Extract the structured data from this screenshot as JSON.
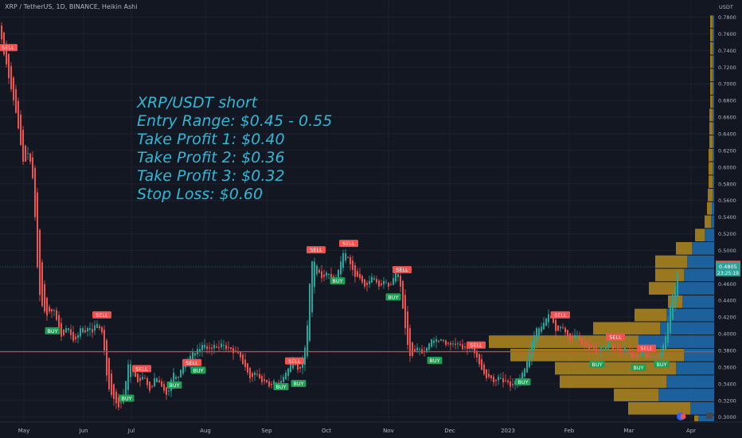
{
  "header": {
    "symbol_line": "XRP / TetherUS, 1D, BINANCE, Heikin Ashi"
  },
  "annotation": {
    "lines": [
      "XRP/USDT short",
      "Entry Range: $0.45 - 0.55",
      "Take Profit 1: $0.40",
      "Take Profit 2: $0.36",
      "Take Profit 3: $0.32",
      "Stop Loss: $0.60"
    ]
  },
  "chart_data": {
    "type": "candlestick",
    "title": "XRP / TetherUS, 1D, BINANCE, Heikin Ashi",
    "currency_label": "USDT",
    "y_ticks": [
      0.3,
      0.32,
      0.34,
      0.36,
      0.38,
      0.4,
      0.42,
      0.44,
      0.46,
      0.48,
      0.5,
      0.52,
      0.54,
      0.56,
      0.58,
      0.6,
      0.62,
      0.64,
      0.66,
      0.68,
      0.7,
      0.72,
      0.74,
      0.76,
      0.78
    ],
    "ylim": [
      0.294,
      0.791
    ],
    "x_labels": [
      "May",
      "Jun",
      "Jul",
      "Aug",
      "Sep",
      "Oct",
      "Nov",
      "Dec",
      "2023",
      "Feb",
      "Mar",
      "Apr"
    ],
    "price_path": [
      [
        0,
        0.77
      ],
      [
        3,
        0.745
      ],
      [
        6,
        0.73
      ],
      [
        9,
        0.72
      ],
      [
        12,
        0.7
      ],
      [
        15,
        0.69
      ],
      [
        18,
        0.675
      ],
      [
        21,
        0.66
      ],
      [
        24,
        0.64
      ],
      [
        27,
        0.62
      ],
      [
        30,
        0.6
      ],
      [
        33,
        0.61
      ],
      [
        36,
        0.62
      ],
      [
        39,
        0.6
      ],
      [
        42,
        0.58
      ],
      [
        45,
        0.52
      ],
      [
        48,
        0.46
      ],
      [
        51,
        0.44
      ],
      [
        54,
        0.43
      ],
      [
        57,
        0.425
      ],
      [
        60,
        0.42
      ],
      [
        63,
        0.43
      ],
      [
        66,
        0.425
      ],
      [
        69,
        0.43
      ],
      [
        72,
        0.41
      ],
      [
        75,
        0.4
      ],
      [
        78,
        0.395
      ],
      [
        81,
        0.4
      ],
      [
        84,
        0.41
      ],
      [
        87,
        0.405
      ],
      [
        90,
        0.395
      ],
      [
        93,
        0.39
      ],
      [
        96,
        0.395
      ],
      [
        99,
        0.4
      ],
      [
        102,
        0.41
      ],
      [
        105,
        0.405
      ],
      [
        108,
        0.4
      ],
      [
        111,
        0.41
      ],
      [
        114,
        0.405
      ],
      [
        117,
        0.4
      ],
      [
        120,
        0.415
      ],
      [
        123,
        0.41
      ],
      [
        126,
        0.405
      ],
      [
        129,
        0.4
      ],
      [
        132,
        0.37
      ],
      [
        135,
        0.34
      ],
      [
        138,
        0.33
      ],
      [
        141,
        0.325
      ],
      [
        144,
        0.32
      ],
      [
        147,
        0.315
      ],
      [
        150,
        0.31
      ],
      [
        153,
        0.32
      ],
      [
        156,
        0.33
      ],
      [
        159,
        0.35
      ],
      [
        162,
        0.37
      ],
      [
        165,
        0.36
      ],
      [
        168,
        0.355
      ],
      [
        171,
        0.345
      ],
      [
        174,
        0.34
      ],
      [
        177,
        0.345
      ],
      [
        180,
        0.35
      ],
      [
        183,
        0.345
      ],
      [
        186,
        0.335
      ],
      [
        189,
        0.33
      ],
      [
        192,
        0.34
      ],
      [
        195,
        0.35
      ],
      [
        198,
        0.345
      ],
      [
        201,
        0.34
      ],
      [
        204,
        0.335
      ],
      [
        207,
        0.33
      ],
      [
        210,
        0.325
      ],
      [
        213,
        0.335
      ],
      [
        216,
        0.35
      ],
      [
        219,
        0.355
      ],
      [
        222,
        0.345
      ],
      [
        225,
        0.35
      ],
      [
        228,
        0.36
      ],
      [
        231,
        0.37
      ],
      [
        234,
        0.365
      ],
      [
        237,
        0.37
      ],
      [
        240,
        0.375
      ],
      [
        243,
        0.38
      ],
      [
        246,
        0.375
      ],
      [
        249,
        0.385
      ],
      [
        252,
        0.38
      ],
      [
        255,
        0.39
      ],
      [
        258,
        0.385
      ],
      [
        261,
        0.38
      ],
      [
        264,
        0.385
      ],
      [
        267,
        0.38
      ],
      [
        270,
        0.39
      ],
      [
        273,
        0.38
      ],
      [
        276,
        0.385
      ],
      [
        279,
        0.39
      ],
      [
        282,
        0.385
      ],
      [
        285,
        0.38
      ],
      [
        288,
        0.385
      ],
      [
        291,
        0.38
      ],
      [
        294,
        0.375
      ],
      [
        297,
        0.38
      ],
      [
        300,
        0.375
      ],
      [
        303,
        0.37
      ],
      [
        306,
        0.36
      ],
      [
        309,
        0.36
      ],
      [
        312,
        0.35
      ],
      [
        315,
        0.345
      ],
      [
        318,
        0.35
      ],
      [
        321,
        0.355
      ],
      [
        324,
        0.35
      ],
      [
        327,
        0.345
      ],
      [
        330,
        0.34
      ],
      [
        333,
        0.345
      ],
      [
        336,
        0.34
      ],
      [
        339,
        0.335
      ],
      [
        342,
        0.34
      ],
      [
        345,
        0.345
      ],
      [
        348,
        0.34
      ],
      [
        351,
        0.34
      ],
      [
        354,
        0.345
      ],
      [
        357,
        0.35
      ],
      [
        360,
        0.355
      ],
      [
        363,
        0.36
      ],
      [
        366,
        0.365
      ],
      [
        369,
        0.37
      ],
      [
        372,
        0.36
      ],
      [
        375,
        0.355
      ],
      [
        378,
        0.36
      ],
      [
        381,
        0.37
      ],
      [
        384,
        0.39
      ],
      [
        387,
        0.42
      ],
      [
        390,
        0.48
      ],
      [
        393,
        0.49
      ],
      [
        396,
        0.485
      ],
      [
        399,
        0.48
      ],
      [
        402,
        0.47
      ],
      [
        405,
        0.465
      ],
      [
        408,
        0.47
      ],
      [
        411,
        0.475
      ],
      [
        414,
        0.47
      ],
      [
        417,
        0.465
      ],
      [
        420,
        0.46
      ],
      [
        423,
        0.47
      ],
      [
        426,
        0.48
      ],
      [
        429,
        0.49
      ],
      [
        432,
        0.5
      ],
      [
        435,
        0.495
      ],
      [
        438,
        0.49
      ],
      [
        441,
        0.48
      ],
      [
        444,
        0.475
      ],
      [
        447,
        0.465
      ],
      [
        450,
        0.47
      ],
      [
        453,
        0.465
      ],
      [
        456,
        0.46
      ],
      [
        459,
        0.455
      ],
      [
        462,
        0.46
      ],
      [
        465,
        0.465
      ],
      [
        468,
        0.47
      ],
      [
        471,
        0.465
      ],
      [
        474,
        0.46
      ],
      [
        477,
        0.455
      ],
      [
        480,
        0.46
      ],
      [
        483,
        0.465
      ],
      [
        486,
        0.46
      ],
      [
        489,
        0.455
      ],
      [
        492,
        0.46
      ],
      [
        495,
        0.47
      ],
      [
        498,
        0.475
      ],
      [
        501,
        0.47
      ],
      [
        504,
        0.45
      ],
      [
        507,
        0.42
      ],
      [
        510,
        0.4
      ],
      [
        513,
        0.38
      ],
      [
        516,
        0.37
      ],
      [
        519,
        0.375
      ],
      [
        522,
        0.38
      ],
      [
        525,
        0.385
      ],
      [
        528,
        0.38
      ],
      [
        531,
        0.375
      ],
      [
        534,
        0.38
      ],
      [
        537,
        0.385
      ],
      [
        540,
        0.39
      ],
      [
        543,
        0.395
      ],
      [
        546,
        0.39
      ],
      [
        549,
        0.395
      ],
      [
        552,
        0.39
      ],
      [
        555,
        0.395
      ],
      [
        558,
        0.39
      ],
      [
        561,
        0.385
      ],
      [
        564,
        0.39
      ],
      [
        567,
        0.385
      ],
      [
        570,
        0.39
      ],
      [
        573,
        0.385
      ],
      [
        576,
        0.39
      ],
      [
        579,
        0.385
      ],
      [
        582,
        0.38
      ],
      [
        585,
        0.385
      ],
      [
        588,
        0.38
      ],
      [
        591,
        0.385
      ],
      [
        594,
        0.38
      ],
      [
        597,
        0.375
      ],
      [
        600,
        0.37
      ],
      [
        603,
        0.36
      ],
      [
        606,
        0.355
      ],
      [
        609,
        0.35
      ],
      [
        612,
        0.345
      ],
      [
        615,
        0.35
      ],
      [
        618,
        0.345
      ],
      [
        621,
        0.34
      ],
      [
        624,
        0.345
      ],
      [
        627,
        0.35
      ],
      [
        630,
        0.345
      ],
      [
        633,
        0.34
      ],
      [
        636,
        0.345
      ],
      [
        639,
        0.34
      ],
      [
        642,
        0.335
      ],
      [
        645,
        0.34
      ],
      [
        648,
        0.345
      ],
      [
        651,
        0.34
      ],
      [
        654,
        0.35
      ],
      [
        657,
        0.355
      ],
      [
        660,
        0.36
      ],
      [
        663,
        0.37
      ],
      [
        666,
        0.385
      ],
      [
        669,
        0.395
      ],
      [
        672,
        0.4
      ],
      [
        675,
        0.41
      ],
      [
        678,
        0.405
      ],
      [
        681,
        0.41
      ],
      [
        684,
        0.415
      ],
      [
        687,
        0.42
      ],
      [
        690,
        0.425
      ],
      [
        693,
        0.42
      ],
      [
        696,
        0.41
      ],
      [
        699,
        0.4
      ],
      [
        702,
        0.405
      ],
      [
        705,
        0.41
      ],
      [
        708,
        0.405
      ],
      [
        711,
        0.4
      ],
      [
        714,
        0.395
      ],
      [
        717,
        0.39
      ],
      [
        720,
        0.395
      ],
      [
        723,
        0.4
      ],
      [
        726,
        0.395
      ],
      [
        729,
        0.39
      ],
      [
        732,
        0.385
      ],
      [
        735,
        0.39
      ],
      [
        738,
        0.385
      ],
      [
        741,
        0.38
      ],
      [
        744,
        0.385
      ],
      [
        747,
        0.38
      ],
      [
        750,
        0.375
      ],
      [
        753,
        0.38
      ],
      [
        756,
        0.385
      ],
      [
        759,
        0.38
      ],
      [
        762,
        0.385
      ],
      [
        765,
        0.39
      ],
      [
        768,
        0.385
      ],
      [
        771,
        0.38
      ],
      [
        774,
        0.385
      ],
      [
        777,
        0.38
      ],
      [
        780,
        0.375
      ],
      [
        783,
        0.38
      ],
      [
        786,
        0.385
      ],
      [
        789,
        0.38
      ],
      [
        792,
        0.375
      ],
      [
        795,
        0.37
      ],
      [
        798,
        0.375
      ],
      [
        801,
        0.37
      ],
      [
        804,
        0.375
      ],
      [
        807,
        0.38
      ],
      [
        810,
        0.375
      ],
      [
        813,
        0.37
      ],
      [
        816,
        0.375
      ],
      [
        819,
        0.37
      ],
      [
        822,
        0.375
      ],
      [
        825,
        0.37
      ],
      [
        828,
        0.375
      ],
      [
        831,
        0.38
      ],
      [
        834,
        0.39
      ],
      [
        837,
        0.4
      ],
      [
        840,
        0.42
      ],
      [
        843,
        0.44
      ],
      [
        846,
        0.45
      ],
      [
        849,
        0.46
      ],
      [
        852,
        0.4805
      ]
    ],
    "signals": [
      {
        "label": "SELL",
        "type": "sell",
        "x": 10,
        "price": 0.7435
      },
      {
        "label": "BUY",
        "type": "buy",
        "x": 66,
        "price": 0.4035
      },
      {
        "label": "SELL",
        "type": "sell",
        "x": 128,
        "price": 0.4227
      },
      {
        "label": "BUY",
        "type": "buy",
        "x": 159,
        "price": 0.3227
      },
      {
        "label": "SELL",
        "type": "sell",
        "x": 178,
        "price": 0.3581
      },
      {
        "label": "SELL",
        "type": "sell",
        "x": 241,
        "price": 0.3654
      },
      {
        "label": "BUY",
        "type": "buy",
        "x": 249,
        "price": 0.3562
      },
      {
        "label": "BUY",
        "type": "buy",
        "x": 219,
        "price": 0.3385
      },
      {
        "label": "BUY",
        "type": "buy",
        "x": 353,
        "price": 0.3365
      },
      {
        "label": "SELL",
        "type": "sell",
        "x": 370,
        "price": 0.3673
      },
      {
        "label": "BUY",
        "type": "buy",
        "x": 375,
        "price": 0.3404
      },
      {
        "label": "SELL",
        "type": "sell",
        "x": 397,
        "price": 0.5008
      },
      {
        "label": "BUY",
        "type": "buy",
        "x": 424,
        "price": 0.4635
      },
      {
        "label": "SELL",
        "type": "sell",
        "x": 438,
        "price": 0.5085
      },
      {
        "label": "BUY",
        "type": "buy",
        "x": 494,
        "price": 0.4442
      },
      {
        "label": "SELL",
        "type": "sell",
        "x": 505,
        "price": 0.4769
      },
      {
        "label": "BUY",
        "type": "buy",
        "x": 546,
        "price": 0.3681
      },
      {
        "label": "SELL",
        "type": "sell",
        "x": 598,
        "price": 0.3865
      },
      {
        "label": "BUY",
        "type": "buy",
        "x": 657,
        "price": 0.3423
      },
      {
        "label": "SELL",
        "type": "sell",
        "x": 704,
        "price": 0.4227
      },
      {
        "label": "SELL",
        "type": "sell",
        "x": 773,
        "price": 0.3962
      },
      {
        "label": "BUY",
        "type": "buy",
        "x": 750,
        "price": 0.3635
      },
      {
        "label": "SELL",
        "type": "sell",
        "x": 812,
        "price": 0.3827
      },
      {
        "label": "BUY",
        "type": "buy",
        "x": 802,
        "price": 0.3596
      },
      {
        "label": "BUY",
        "type": "buy",
        "x": 831,
        "price": 0.3635
      }
    ],
    "horizontal_line": 0.3785,
    "last_price": 0.4805,
    "last_price_label": "0.4805",
    "countdown_label": "23:25:19",
    "marker_price": 0.4829,
    "marker_label": "0.4829",
    "volume_profile": [
      {
        "low": 0.294,
        "high": 0.302,
        "gold": 5,
        "blue": 20
      },
      {
        "low": 0.302,
        "high": 0.318,
        "gold": 78,
        "blue": 30
      },
      {
        "low": 0.318,
        "high": 0.334,
        "gold": 56,
        "blue": 70
      },
      {
        "low": 0.334,
        "high": 0.35,
        "gold": 134,
        "blue": 60
      },
      {
        "low": 0.35,
        "high": 0.366,
        "gold": 152,
        "blue": 48
      },
      {
        "low": 0.366,
        "high": 0.382,
        "gold": 218,
        "blue": 38
      },
      {
        "low": 0.382,
        "high": 0.398,
        "gold": 188,
        "blue": 95
      },
      {
        "low": 0.398,
        "high": 0.414,
        "gold": 84,
        "blue": 68
      },
      {
        "low": 0.414,
        "high": 0.43,
        "gold": 40,
        "blue": 60
      },
      {
        "low": 0.43,
        "high": 0.446,
        "gold": 18,
        "blue": 40
      },
      {
        "low": 0.446,
        "high": 0.462,
        "gold": 34,
        "blue": 48
      },
      {
        "low": 0.462,
        "high": 0.478,
        "gold": 36,
        "blue": 38
      },
      {
        "low": 0.478,
        "high": 0.494,
        "gold": 40,
        "blue": 34
      },
      {
        "low": 0.494,
        "high": 0.51,
        "gold": 20,
        "blue": 28
      },
      {
        "low": 0.51,
        "high": 0.526,
        "gold": 12,
        "blue": 12
      },
      {
        "low": 0.526,
        "high": 0.542,
        "gold": 8,
        "blue": 4
      },
      {
        "low": 0.542,
        "high": 0.558,
        "gold": 6,
        "blue": 3
      },
      {
        "low": 0.558,
        "high": 0.574,
        "gold": 6,
        "blue": 2
      },
      {
        "low": 0.574,
        "high": 0.59,
        "gold": 5,
        "blue": 2
      },
      {
        "low": 0.59,
        "high": 0.606,
        "gold": 5,
        "blue": 2
      },
      {
        "low": 0.606,
        "high": 0.622,
        "gold": 5,
        "blue": 2
      },
      {
        "low": 0.622,
        "high": 0.638,
        "gold": 4,
        "blue": 2
      },
      {
        "low": 0.638,
        "high": 0.654,
        "gold": 4,
        "blue": 2
      },
      {
        "low": 0.654,
        "high": 0.67,
        "gold": 4,
        "blue": 2
      },
      {
        "low": 0.67,
        "high": 0.686,
        "gold": 3,
        "blue": 2
      },
      {
        "low": 0.686,
        "high": 0.702,
        "gold": 3,
        "blue": 2
      },
      {
        "low": 0.702,
        "high": 0.718,
        "gold": 3,
        "blue": 2
      },
      {
        "low": 0.718,
        "high": 0.734,
        "gold": 3,
        "blue": 2
      },
      {
        "low": 0.734,
        "high": 0.75,
        "gold": 3,
        "blue": 2
      },
      {
        "low": 0.75,
        "high": 0.766,
        "gold": 3,
        "blue": 2
      },
      {
        "low": 0.766,
        "high": 0.782,
        "gold": 3,
        "blue": 2
      }
    ],
    "colors": {
      "background": "#131722",
      "grid": "#1e222d",
      "up": "#26a69a",
      "down": "#ef5350",
      "axis_text": "#b2b5be",
      "annotation": "#2fb8d6",
      "hline": "#e53935",
      "profile_gold": "#b38a1f",
      "profile_blue": "#1e6fb0"
    }
  }
}
